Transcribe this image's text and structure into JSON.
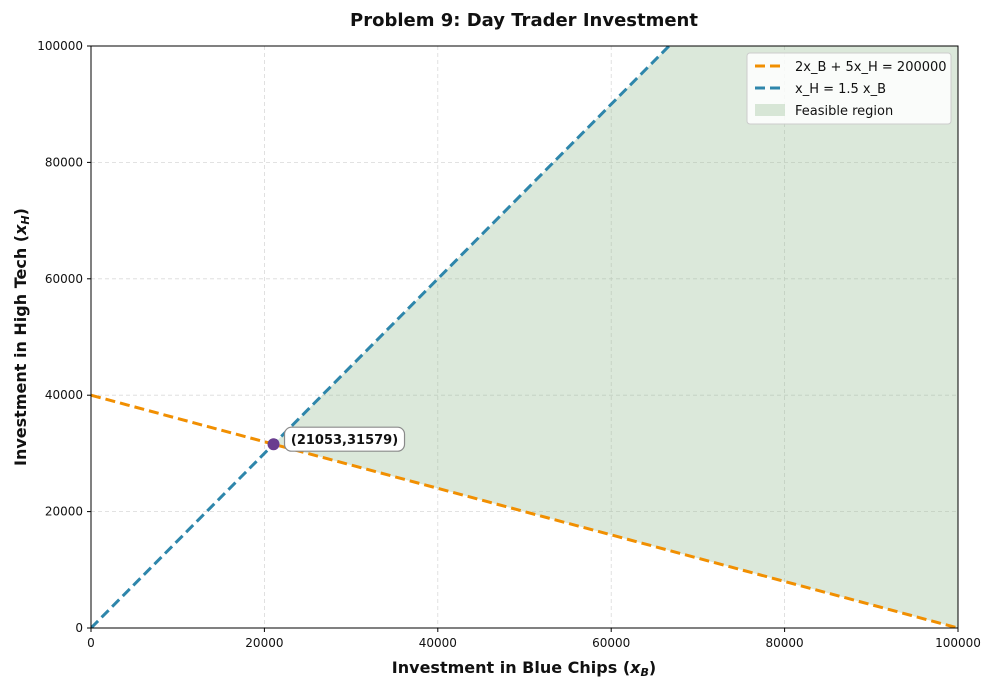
{
  "chart_data": {
    "type": "line",
    "title": "Problem 9: Day Trader Investment",
    "xlabel": "Investment in Blue Chips",
    "xlabel_sym": "x",
    "xlabel_sub": "B",
    "ylabel": "Investment in High Tech",
    "ylabel_sym": "x",
    "ylabel_sub": "H",
    "xlim": [
      0,
      100000
    ],
    "ylim": [
      0,
      100000
    ],
    "xticks": [
      0,
      20000,
      40000,
      60000,
      80000,
      100000
    ],
    "yticks": [
      0,
      20000,
      40000,
      60000,
      80000,
      100000
    ],
    "grid": true,
    "legend_position": "top-right",
    "series": [
      {
        "name": "2x_B + 5x_H = 200000",
        "color": "#F18F01",
        "style": "dashed",
        "x": [
          0,
          100000
        ],
        "y": [
          40000,
          0
        ]
      },
      {
        "name": "x_H = 1.5 x_B",
        "color": "#2E86AB",
        "style": "dashed",
        "x": [
          0,
          66667
        ],
        "y": [
          0,
          100000
        ]
      }
    ],
    "feasible_region": {
      "name": "Feasible region",
      "color": "#8FB98B",
      "vertices": [
        [
          21053,
          31579
        ],
        [
          66667,
          100000
        ],
        [
          100000,
          100000
        ],
        [
          100000,
          0
        ]
      ]
    },
    "point": {
      "x": 21053,
      "y": 31579,
      "label": "(21053,31579)",
      "color": "#6A3D8F"
    }
  }
}
